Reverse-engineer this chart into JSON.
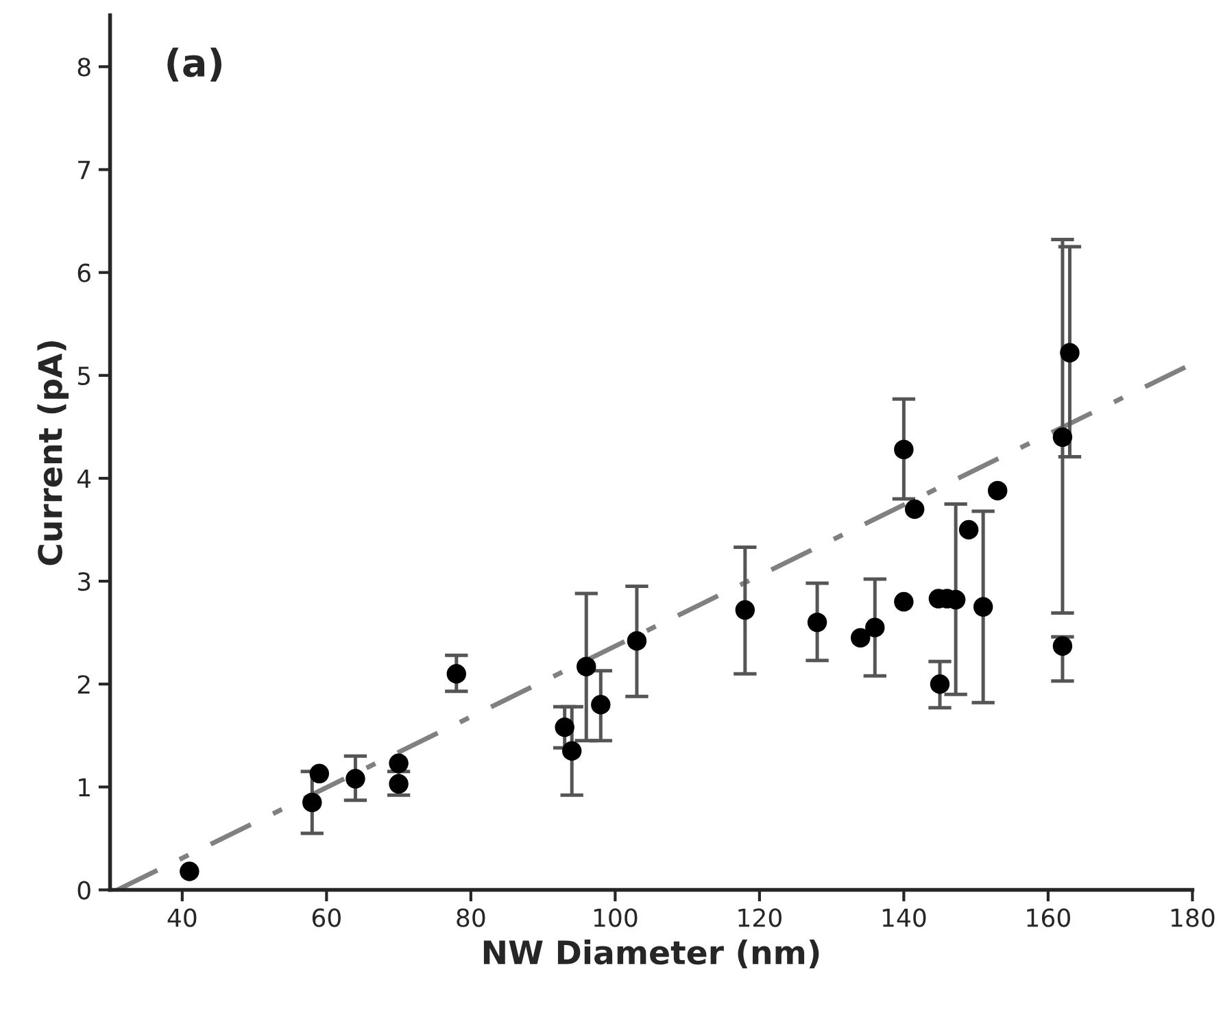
{
  "chart_data": {
    "type": "scatter",
    "xlabel": "NW Diameter (nm)",
    "ylabel": "Current (pA)",
    "annotations": [
      "(a)"
    ],
    "xlim": [
      30,
      180
    ],
    "xticks": [
      40,
      60,
      80,
      100,
      120,
      140,
      160,
      180
    ],
    "ylim": [
      0,
      8.5
    ],
    "yticks": [
      0,
      1,
      2,
      3,
      4,
      5,
      6,
      7,
      8
    ],
    "grid": false,
    "legend": false,
    "series": [
      {
        "color": "#000000",
        "marker": "circle",
        "x": [
          41,
          58,
          59,
          64,
          70,
          70,
          78,
          93,
          94,
          96,
          98,
          103,
          118,
          128,
          134,
          136,
          140,
          140,
          141.5,
          145,
          144.8,
          146,
          147.2,
          149,
          151,
          153,
          162,
          163,
          162
        ],
        "values": [
          0.18,
          0.85,
          1.13,
          1.08,
          1.23,
          1.03,
          2.1,
          1.58,
          1.35,
          2.17,
          1.8,
          2.42,
          2.72,
          2.6,
          2.45,
          2.55,
          4.28,
          2.8,
          3.7,
          2.0,
          2.83,
          2.83,
          2.82,
          3.5,
          2.75,
          3.88,
          4.4,
          5.22,
          2.37
        ],
        "errors": [
          null,
          [
            0.55,
            1.15
          ],
          null,
          [
            0.87,
            1.3
          ],
          null,
          [
            0.92,
            1.15
          ],
          [
            1.93,
            2.28
          ],
          [
            1.38,
            1.78
          ],
          [
            0.92,
            1.78
          ],
          [
            1.45,
            2.88
          ],
          [
            1.45,
            2.13
          ],
          [
            1.88,
            2.95
          ],
          [
            2.1,
            3.33
          ],
          [
            2.23,
            2.98
          ],
          null,
          [
            2.08,
            3.02
          ],
          [
            3.8,
            4.77
          ],
          null,
          null,
          [
            1.77,
            2.22
          ],
          null,
          null,
          [
            1.9,
            3.75
          ],
          null,
          [
            1.82,
            3.68
          ],
          null,
          [
            2.69,
            6.32
          ],
          [
            4.21,
            6.25
          ],
          [
            2.03,
            2.46
          ]
        ]
      },
      {
        "type": "line",
        "color": "#808080",
        "line_style": "dashdot",
        "marker": "none",
        "x": [
          31,
          179
        ],
        "values": [
          0,
          5.08
        ]
      }
    ]
  }
}
